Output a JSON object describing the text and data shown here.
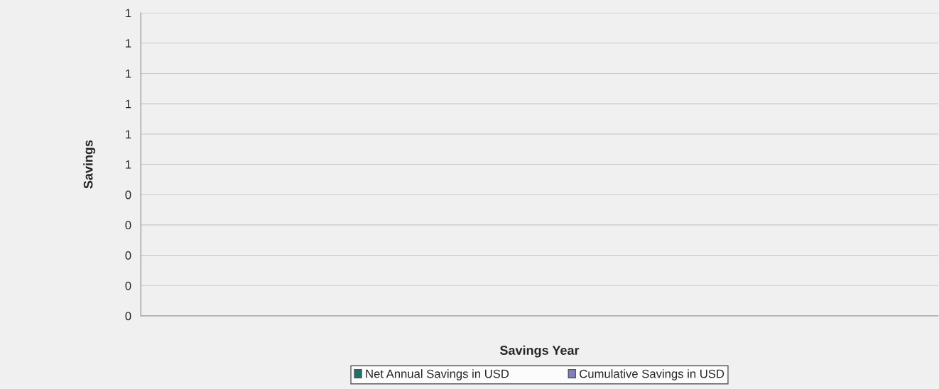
{
  "chart_data": {
    "type": "bar",
    "xlabel": "Savings Year",
    "ylabel": "Savings",
    "categories": [
      null,
      null,
      null,
      null,
      null,
      null,
      null,
      null,
      null,
      null
    ],
    "series": [
      {
        "name": "Net Annual Savings in USD",
        "color": "#1f6f6a",
        "values": [
          null,
          null,
          null,
          null,
          null,
          null,
          null,
          null,
          null,
          null
        ]
      },
      {
        "name": "Cumulative Savings in USD",
        "color": "#8080c0",
        "values": [
          null,
          null,
          null,
          null,
          null,
          null,
          null,
          null,
          null,
          null
        ]
      }
    ],
    "ylim": [
      0,
      1
    ],
    "yticks": [
      {
        "value": 0,
        "label": "0"
      },
      {
        "value": 0.1,
        "label": "0"
      },
      {
        "value": 0.2,
        "label": "0"
      },
      {
        "value": 0.3,
        "label": "0"
      },
      {
        "value": 0.4,
        "label": "0"
      },
      {
        "value": 0.5,
        "label": "1"
      },
      {
        "value": 0.6,
        "label": "1"
      },
      {
        "value": 0.7,
        "label": "1"
      },
      {
        "value": 0.8,
        "label": "1"
      },
      {
        "value": 0.9,
        "label": "1"
      },
      {
        "value": 1,
        "label": "1"
      }
    ],
    "grid": "y",
    "legend": "bottom",
    "tick_labels": "y"
  }
}
